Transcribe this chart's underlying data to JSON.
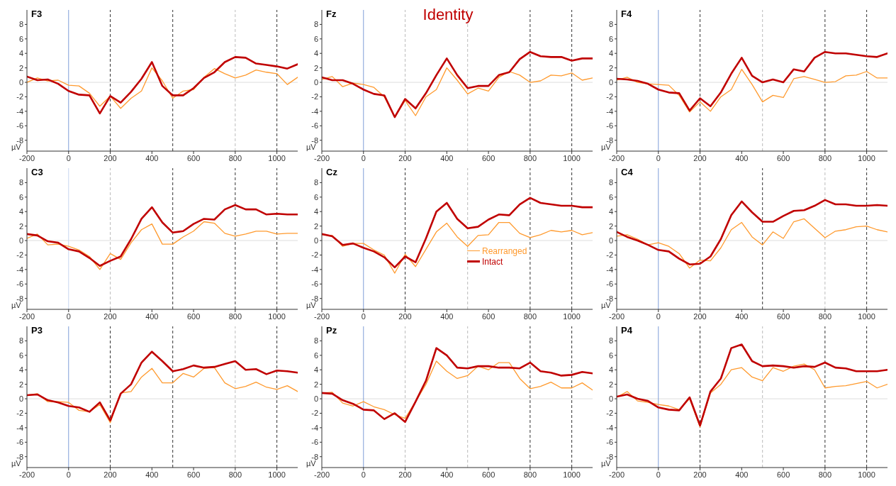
{
  "chart_data": [
    {
      "type": "line",
      "title": "F3",
      "ylabel": "µV",
      "x": [
        -200,
        -150,
        -100,
        -50,
        0,
        50,
        100,
        150,
        200,
        250,
        300,
        350,
        400,
        450,
        500,
        550,
        600,
        650,
        700,
        750,
        800,
        850,
        900,
        950,
        1000,
        1050,
        1100
      ],
      "series": [
        {
          "color": "#ff9a2e",
          "values": [
            0,
            0.6,
            0.2,
            0.3,
            -0.4,
            -0.5,
            -1.5,
            -3.3,
            -1.9,
            -3.6,
            -2.2,
            -1.2,
            2.0,
            0.2,
            -2.2,
            -1.2,
            -1.0,
            0.7,
            1.9,
            1.2,
            0.6,
            1.0,
            1.7,
            1.4,
            1.2,
            -0.3,
            0.7
          ]
        },
        {
          "color": "#c00000",
          "values": [
            0.8,
            0.3,
            0.4,
            -0.2,
            -1.2,
            -1.7,
            -1.8,
            -4.3,
            -1.9,
            -2.8,
            -1.3,
            0.5,
            2.8,
            -0.5,
            -1.8,
            -1.8,
            -0.8,
            0.6,
            1.4,
            2.8,
            3.5,
            3.4,
            2.6,
            2.4,
            2.2,
            1.9,
            2.5
          ]
        }
      ],
      "xlim": [
        -200,
        1100
      ],
      "xticks": [
        -200,
        0,
        200,
        400,
        600,
        800,
        1000
      ],
      "ylim": [
        -9.5,
        10
      ],
      "yticks": [
        -8,
        -6,
        -4,
        -2,
        0,
        2,
        4,
        6,
        8
      ],
      "line_style": "solid",
      "marker": "none",
      "ref_lines": [
        {
          "axis": "y",
          "value": 0,
          "color": "#dddddd",
          "line_style": "solid"
        },
        {
          "axis": "x",
          "value": 0,
          "color": "#7f9fd8",
          "line_style": "solid"
        },
        {
          "axis": "x",
          "value": 200,
          "color": "#333333",
          "line_style": "dashed"
        },
        {
          "axis": "x",
          "value": 500,
          "color": "#333333",
          "line_style": "dashed"
        },
        {
          "axis": "x",
          "value": 800,
          "color": "#bbbbbb",
          "line_style": "dashed"
        },
        {
          "axis": "x",
          "value": 1000,
          "color": "#333333",
          "line_style": "dashed"
        }
      ]
    },
    {
      "type": "line",
      "title": "Fz",
      "ylabel": "µV",
      "annotations": [
        "Identity"
      ],
      "x": [
        -200,
        -150,
        -100,
        -50,
        0,
        50,
        100,
        150,
        200,
        250,
        300,
        350,
        400,
        450,
        500,
        550,
        600,
        650,
        700,
        750,
        800,
        850,
        900,
        950,
        1000,
        1050,
        1100
      ],
      "series": [
        {
          "color": "#ff9a2e",
          "values": [
            0.4,
            0.8,
            -0.6,
            -0.1,
            -0.3,
            -0.7,
            -2.0,
            -4.8,
            -2.5,
            -4.6,
            -2.0,
            -1.0,
            2.0,
            0.3,
            -1.6,
            -0.8,
            -1.2,
            0.7,
            1.5,
            1.0,
            0.0,
            0.2,
            1.0,
            0.9,
            1.3,
            0.3,
            0.6
          ]
        },
        {
          "color": "#c00000",
          "values": [
            0.7,
            0.3,
            0.3,
            -0.2,
            -1.0,
            -1.6,
            -1.8,
            -4.8,
            -2.3,
            -3.6,
            -1.5,
            1.0,
            3.3,
            1.0,
            -0.8,
            -0.5,
            -0.5,
            1.0,
            1.4,
            3.2,
            4.2,
            3.6,
            3.5,
            3.5,
            3.0,
            3.3,
            3.3
          ]
        }
      ],
      "xlim": [
        -200,
        1100
      ],
      "xticks": [
        -200,
        0,
        200,
        400,
        600,
        800,
        1000
      ],
      "ylim": [
        -9.5,
        10
      ],
      "yticks": [
        -8,
        -6,
        -4,
        -2,
        0,
        2,
        4,
        6,
        8
      ],
      "line_style": "solid",
      "marker": "none",
      "ref_lines": [
        {
          "axis": "y",
          "value": 0,
          "color": "#dddddd",
          "line_style": "solid"
        },
        {
          "axis": "x",
          "value": 0,
          "color": "#7f9fd8",
          "line_style": "solid"
        },
        {
          "axis": "x",
          "value": 200,
          "color": "#bbbbbb",
          "line_style": "dashed"
        },
        {
          "axis": "x",
          "value": 500,
          "color": "#bbbbbb",
          "line_style": "dashed"
        },
        {
          "axis": "x",
          "value": 800,
          "color": "#333333",
          "line_style": "dashed"
        },
        {
          "axis": "x",
          "value": 1000,
          "color": "#333333",
          "line_style": "dashed"
        }
      ]
    },
    {
      "type": "line",
      "title": "F4",
      "ylabel": "µV",
      "x": [
        -200,
        -150,
        -100,
        -50,
        0,
        50,
        100,
        150,
        200,
        250,
        300,
        350,
        400,
        450,
        500,
        550,
        600,
        650,
        700,
        750,
        800,
        850,
        900,
        950,
        1000,
        1050,
        1100
      ],
      "series": [
        {
          "color": "#ff9a2e",
          "values": [
            0.3,
            0.7,
            0.0,
            -0.2,
            -0.3,
            -0.4,
            -1.8,
            -4.1,
            -2.7,
            -4.0,
            -2.0,
            -1.0,
            1.8,
            -0.3,
            -2.7,
            -1.8,
            -2.1,
            0.5,
            0.8,
            0.4,
            0.0,
            0.1,
            0.9,
            1.0,
            1.5,
            0.6,
            0.6
          ]
        },
        {
          "color": "#c00000",
          "values": [
            0.5,
            0.4,
            0.2,
            -0.2,
            -1.0,
            -1.4,
            -1.5,
            -3.9,
            -2.2,
            -3.3,
            -1.4,
            1.2,
            3.4,
            0.9,
            0.0,
            0.4,
            0.0,
            1.8,
            1.5,
            3.4,
            4.2,
            4.0,
            4.0,
            3.8,
            3.6,
            3.5,
            4.0
          ]
        }
      ],
      "xlim": [
        -200,
        1100
      ],
      "xticks": [
        -200,
        0,
        200,
        400,
        600,
        800,
        1000
      ],
      "ylim": [
        -9.5,
        10
      ],
      "yticks": [
        -8,
        -6,
        -4,
        -2,
        0,
        2,
        4,
        6,
        8
      ],
      "line_style": "solid",
      "marker": "none",
      "ref_lines": [
        {
          "axis": "y",
          "value": 0,
          "color": "#dddddd",
          "line_style": "solid"
        },
        {
          "axis": "x",
          "value": 0,
          "color": "#7f9fd8",
          "line_style": "solid"
        },
        {
          "axis": "x",
          "value": 200,
          "color": "#333333",
          "line_style": "dashed"
        },
        {
          "axis": "x",
          "value": 500,
          "color": "#bbbbbb",
          "line_style": "dashed"
        },
        {
          "axis": "x",
          "value": 800,
          "color": "#333333",
          "line_style": "dashed"
        },
        {
          "axis": "x",
          "value": 1000,
          "color": "#333333",
          "line_style": "dashed"
        }
      ]
    },
    {
      "type": "line",
      "title": "C3",
      "ylabel": "µV",
      "x": [
        -200,
        -150,
        -100,
        -50,
        0,
        50,
        100,
        150,
        200,
        250,
        300,
        350,
        400,
        450,
        500,
        550,
        600,
        650,
        700,
        750,
        800,
        850,
        900,
        950,
        1000,
        1050,
        1100
      ],
      "series": [
        {
          "color": "#ff9a2e",
          "values": [
            0.3,
            0.9,
            -0.6,
            -0.5,
            -0.8,
            -1.3,
            -2.2,
            -4.0,
            -1.8,
            -2.6,
            -0.3,
            1.5,
            2.3,
            -0.5,
            -0.5,
            0.5,
            1.3,
            2.6,
            2.4,
            1.0,
            0.6,
            0.9,
            1.3,
            1.3,
            0.9,
            1.0,
            1.0
          ]
        },
        {
          "color": "#c00000",
          "values": [
            0.9,
            0.7,
            -0.1,
            -0.3,
            -1.2,
            -1.5,
            -2.4,
            -3.5,
            -2.8,
            -2.2,
            0.2,
            3.0,
            4.6,
            2.5,
            1.1,
            1.3,
            2.3,
            3.0,
            2.9,
            4.3,
            4.9,
            4.3,
            4.3,
            3.6,
            3.7,
            3.6,
            3.6
          ]
        }
      ],
      "xlim": [
        -200,
        1100
      ],
      "xticks": [
        -200,
        0,
        200,
        400,
        600,
        800,
        1000
      ],
      "ylim": [
        -9.5,
        10
      ],
      "yticks": [
        -8,
        -6,
        -4,
        -2,
        0,
        2,
        4,
        6,
        8
      ],
      "line_style": "solid",
      "marker": "none",
      "ref_lines": [
        {
          "axis": "y",
          "value": 0,
          "color": "#dddddd",
          "line_style": "solid"
        },
        {
          "axis": "x",
          "value": 0,
          "color": "#c8d6f0",
          "line_style": "solid"
        },
        {
          "axis": "x",
          "value": 200,
          "color": "#bbbbbb",
          "line_style": "dashed"
        },
        {
          "axis": "x",
          "value": 500,
          "color": "#333333",
          "line_style": "dashed"
        },
        {
          "axis": "x",
          "value": 800,
          "color": "#333333",
          "line_style": "dashed"
        },
        {
          "axis": "x",
          "value": 1000,
          "color": "#333333",
          "line_style": "dashed"
        }
      ]
    },
    {
      "type": "line",
      "title": "Cz",
      "ylabel": "µV",
      "legend": "center",
      "x": [
        -200,
        -150,
        -100,
        -50,
        0,
        50,
        100,
        150,
        200,
        250,
        300,
        350,
        400,
        450,
        500,
        550,
        600,
        650,
        700,
        750,
        800,
        850,
        900,
        950,
        1000,
        1050,
        1100
      ],
      "series": [
        {
          "name": "Rearranged",
          "color": "#ff9a2e",
          "values": [
            0.8,
            0.7,
            -0.8,
            -0.4,
            -0.4,
            -1.3,
            -2.0,
            -4.5,
            -1.9,
            -3.6,
            -1.2,
            1.2,
            2.4,
            0.5,
            -0.8,
            0.7,
            0.8,
            2.5,
            2.5,
            1.0,
            0.4,
            0.8,
            1.4,
            1.2,
            1.4,
            0.8,
            1.1
          ]
        },
        {
          "name": "Intact",
          "color": "#c00000",
          "values": [
            0.9,
            0.6,
            -0.6,
            -0.4,
            -1.0,
            -1.5,
            -2.3,
            -3.7,
            -2.2,
            -3.0,
            0.3,
            4.0,
            5.2,
            3.0,
            1.7,
            1.9,
            2.9,
            3.6,
            3.5,
            5.0,
            5.9,
            5.2,
            5.0,
            4.8,
            4.8,
            4.6,
            4.6
          ]
        }
      ],
      "xlim": [
        -200,
        1100
      ],
      "xticks": [
        -200,
        0,
        200,
        400,
        600,
        800,
        1000
      ],
      "ylim": [
        -9.5,
        10
      ],
      "yticks": [
        -8,
        -6,
        -4,
        -2,
        0,
        2,
        4,
        6,
        8
      ],
      "line_style": "solid",
      "marker": "none",
      "ref_lines": [
        {
          "axis": "y",
          "value": 0,
          "color": "#dddddd",
          "line_style": "solid"
        },
        {
          "axis": "x",
          "value": 0,
          "color": "#7f9fd8",
          "line_style": "solid"
        },
        {
          "axis": "x",
          "value": 200,
          "color": "#333333",
          "line_style": "dashed"
        },
        {
          "axis": "x",
          "value": 500,
          "color": "#bbbbbb",
          "line_style": "dashed"
        },
        {
          "axis": "x",
          "value": 800,
          "color": "#333333",
          "line_style": "dashed"
        },
        {
          "axis": "x",
          "value": 1000,
          "color": "#333333",
          "line_style": "dashed"
        }
      ]
    },
    {
      "type": "line",
      "title": "C4",
      "ylabel": "µV",
      "x": [
        -200,
        -150,
        -100,
        -50,
        0,
        50,
        100,
        150,
        200,
        250,
        300,
        350,
        400,
        450,
        500,
        550,
        600,
        650,
        700,
        750,
        800,
        850,
        900,
        950,
        1000,
        1050,
        1100
      ],
      "series": [
        {
          "color": "#ff9a2e",
          "values": [
            0.6,
            0.8,
            0.2,
            -0.6,
            -0.3,
            -0.8,
            -1.8,
            -3.8,
            -2.7,
            -2.8,
            -1.0,
            1.5,
            2.5,
            0.5,
            -0.6,
            1.2,
            0.3,
            2.6,
            3.0,
            1.7,
            0.4,
            1.3,
            1.5,
            1.9,
            2.0,
            1.5,
            1.2
          ]
        },
        {
          "color": "#c00000",
          "values": [
            1.2,
            0.5,
            0.0,
            -0.6,
            -1.3,
            -1.5,
            -2.5,
            -3.3,
            -3.2,
            -2.2,
            0.2,
            3.5,
            5.4,
            3.9,
            2.6,
            2.6,
            3.4,
            4.1,
            4.2,
            4.8,
            5.6,
            5.0,
            5.0,
            4.8,
            4.8,
            4.9,
            4.8
          ]
        }
      ],
      "xlim": [
        -200,
        1100
      ],
      "xticks": [
        -200,
        0,
        200,
        400,
        600,
        800,
        1000
      ],
      "ylim": [
        -9.5,
        10
      ],
      "yticks": [
        -8,
        -6,
        -4,
        -2,
        0,
        2,
        4,
        6,
        8
      ],
      "line_style": "solid",
      "marker": "none",
      "ref_lines": [
        {
          "axis": "y",
          "value": 0,
          "color": "#dddddd",
          "line_style": "solid"
        },
        {
          "axis": "x",
          "value": 0,
          "color": "#7f9fd8",
          "line_style": "solid"
        },
        {
          "axis": "x",
          "value": 200,
          "color": "#333333",
          "line_style": "dashed"
        },
        {
          "axis": "x",
          "value": 500,
          "color": "#333333",
          "line_style": "dashed"
        },
        {
          "axis": "x",
          "value": 800,
          "color": "#bbbbbb",
          "line_style": "dashed"
        },
        {
          "axis": "x",
          "value": 1000,
          "color": "#333333",
          "line_style": "dashed"
        }
      ]
    },
    {
      "type": "line",
      "title": "P3",
      "ylabel": "µV",
      "x": [
        -200,
        -150,
        -100,
        -50,
        0,
        50,
        100,
        150,
        200,
        250,
        300,
        350,
        400,
        450,
        500,
        550,
        600,
        650,
        700,
        750,
        800,
        850,
        900,
        950,
        1000,
        1050,
        1100
      ],
      "series": [
        {
          "color": "#ff9a2e",
          "values": [
            0.5,
            0.7,
            -0.4,
            -0.4,
            -0.5,
            -1.6,
            -1.8,
            -0.8,
            -3.3,
            0.8,
            1.0,
            3.0,
            4.2,
            2.2,
            2.2,
            3.5,
            3.0,
            4.2,
            4.3,
            2.2,
            1.4,
            1.7,
            2.3,
            1.6,
            1.3,
            1.8,
            1.0
          ]
        },
        {
          "color": "#c00000",
          "values": [
            0.5,
            0.6,
            -0.2,
            -0.5,
            -1.0,
            -1.2,
            -1.8,
            -0.5,
            -3.0,
            0.7,
            2.0,
            5.0,
            6.5,
            5.2,
            3.8,
            4.1,
            4.6,
            4.3,
            4.4,
            4.8,
            5.2,
            4.0,
            4.1,
            3.4,
            3.9,
            3.8,
            3.6
          ]
        }
      ],
      "xlim": [
        -200,
        1100
      ],
      "xticks": [
        -200,
        0,
        200,
        400,
        600,
        800,
        1000
      ],
      "ylim": [
        -9.5,
        10
      ],
      "yticks": [
        -8,
        -6,
        -4,
        -2,
        0,
        2,
        4,
        6,
        8
      ],
      "line_style": "solid",
      "marker": "none",
      "ref_lines": [
        {
          "axis": "y",
          "value": 0,
          "color": "#dddddd",
          "line_style": "solid"
        },
        {
          "axis": "x",
          "value": 0,
          "color": "#7f9fd8",
          "line_style": "solid"
        },
        {
          "axis": "x",
          "value": 200,
          "color": "#333333",
          "line_style": "dashed"
        },
        {
          "axis": "x",
          "value": 500,
          "color": "#333333",
          "line_style": "dashed"
        },
        {
          "axis": "x",
          "value": 800,
          "color": "#bbbbbb",
          "line_style": "dashed"
        },
        {
          "axis": "x",
          "value": 1000,
          "color": "#333333",
          "line_style": "dashed"
        }
      ]
    },
    {
      "type": "line",
      "title": "Pz",
      "ylabel": "µV",
      "x": [
        -200,
        -150,
        -100,
        -50,
        0,
        50,
        100,
        150,
        200,
        250,
        300,
        350,
        400,
        450,
        500,
        550,
        600,
        650,
        700,
        750,
        800,
        850,
        900,
        950,
        1000,
        1050,
        1100
      ],
      "series": [
        {
          "color": "#ff9a2e",
          "values": [
            0.8,
            0.9,
            -0.6,
            -1.0,
            -0.4,
            -1.1,
            -1.5,
            -2.2,
            -2.7,
            -0.4,
            2.0,
            5.2,
            3.8,
            2.8,
            3.2,
            4.5,
            4.0,
            5.0,
            5.0,
            2.8,
            1.4,
            1.7,
            2.3,
            1.5,
            1.5,
            2.2,
            1.2
          ]
        },
        {
          "color": "#c00000",
          "values": [
            0.8,
            0.7,
            -0.2,
            -0.7,
            -1.5,
            -1.6,
            -2.8,
            -2.0,
            -3.2,
            -0.4,
            2.5,
            7.0,
            6.0,
            4.3,
            4.2,
            4.5,
            4.5,
            4.3,
            4.3,
            4.2,
            5.0,
            3.8,
            3.6,
            3.2,
            3.3,
            3.7,
            3.5
          ]
        }
      ],
      "xlim": [
        -200,
        1100
      ],
      "xticks": [
        -200,
        0,
        200,
        400,
        600,
        800,
        1000
      ],
      "ylim": [
        -9.5,
        10
      ],
      "yticks": [
        -8,
        -6,
        -4,
        -2,
        0,
        2,
        4,
        6,
        8
      ],
      "line_style": "solid",
      "marker": "none",
      "ref_lines": [
        {
          "axis": "y",
          "value": 0,
          "color": "#dddddd",
          "line_style": "solid"
        },
        {
          "axis": "x",
          "value": 0,
          "color": "#7f9fd8",
          "line_style": "solid"
        },
        {
          "axis": "x",
          "value": 200,
          "color": "#bbbbbb",
          "line_style": "dashed"
        },
        {
          "axis": "x",
          "value": 500,
          "color": "#bbbbbb",
          "line_style": "dashed"
        },
        {
          "axis": "x",
          "value": 800,
          "color": "#333333",
          "line_style": "dashed"
        },
        {
          "axis": "x",
          "value": 1000,
          "color": "#333333",
          "line_style": "dashed"
        }
      ]
    },
    {
      "type": "line",
      "title": "P4",
      "ylabel": "µV",
      "x": [
        -200,
        -150,
        -100,
        -50,
        0,
        50,
        100,
        150,
        200,
        250,
        300,
        350,
        400,
        450,
        500,
        550,
        600,
        650,
        700,
        750,
        800,
        850,
        900,
        950,
        1000,
        1050,
        1100
      ],
      "series": [
        {
          "color": "#ff9a2e",
          "values": [
            0.2,
            1.0,
            -0.3,
            -0.5,
            -0.8,
            -1.0,
            -1.5,
            0.0,
            -3.9,
            0.8,
            2.0,
            4.0,
            4.3,
            3.0,
            2.5,
            4.3,
            3.8,
            4.5,
            4.8,
            4.0,
            1.5,
            1.7,
            1.8,
            2.1,
            2.4,
            1.5,
            2.0
          ]
        },
        {
          "color": "#c00000",
          "values": [
            0.3,
            0.6,
            0.0,
            -0.3,
            -1.2,
            -1.5,
            -1.6,
            0.2,
            -3.7,
            1.0,
            2.8,
            7.0,
            7.5,
            5.2,
            4.5,
            4.6,
            4.5,
            4.3,
            4.5,
            4.4,
            5.0,
            4.3,
            4.2,
            3.8,
            3.8,
            3.8,
            4.0
          ]
        }
      ],
      "xlim": [
        -200,
        1100
      ],
      "xticks": [
        -200,
        0,
        200,
        400,
        600,
        800,
        1000
      ],
      "ylim": [
        -9.5,
        10
      ],
      "yticks": [
        -8,
        -6,
        -4,
        -2,
        0,
        2,
        4,
        6,
        8
      ],
      "line_style": "solid",
      "marker": "none",
      "ref_lines": [
        {
          "axis": "y",
          "value": 0,
          "color": "#dddddd",
          "line_style": "solid"
        },
        {
          "axis": "x",
          "value": 0,
          "color": "#7f9fd8",
          "line_style": "solid"
        },
        {
          "axis": "x",
          "value": 200,
          "color": "#333333",
          "line_style": "dashed"
        },
        {
          "axis": "x",
          "value": 500,
          "color": "#bbbbbb",
          "line_style": "dashed"
        },
        {
          "axis": "x",
          "value": 800,
          "color": "#333333",
          "line_style": "dashed"
        },
        {
          "axis": "x",
          "value": 1000,
          "color": "#333333",
          "line_style": "dashed"
        }
      ]
    }
  ]
}
